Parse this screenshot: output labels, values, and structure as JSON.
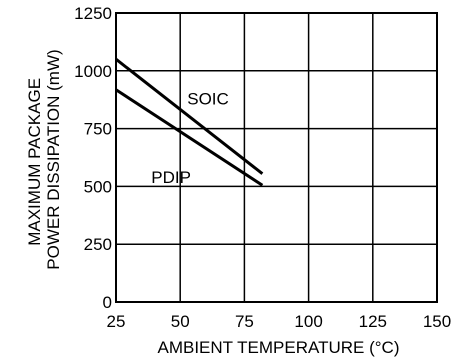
{
  "chart_data": {
    "type": "line",
    "xlabel": "AMBIENT TEMPERATURE (°C)",
    "ylabel_lines": [
      "MAXIMUM PACKAGE",
      "POWER DISSIPATION (mW)"
    ],
    "xlim": [
      25,
      150
    ],
    "ylim": [
      0,
      1250
    ],
    "x_ticks": [
      25,
      50,
      75,
      100,
      125,
      150
    ],
    "y_ticks": [
      0,
      250,
      500,
      750,
      1000,
      1250
    ],
    "grid": true,
    "series": [
      {
        "name": "SOIC",
        "x": [
          25,
          82
        ],
        "y": [
          1050,
          555
        ]
      },
      {
        "name": "PDIP",
        "x": [
          25,
          82
        ],
        "y": [
          918,
          505
        ]
      }
    ],
    "colors": {
      "line": "#000000",
      "grid": "#000000",
      "background": "#ffffff"
    }
  }
}
